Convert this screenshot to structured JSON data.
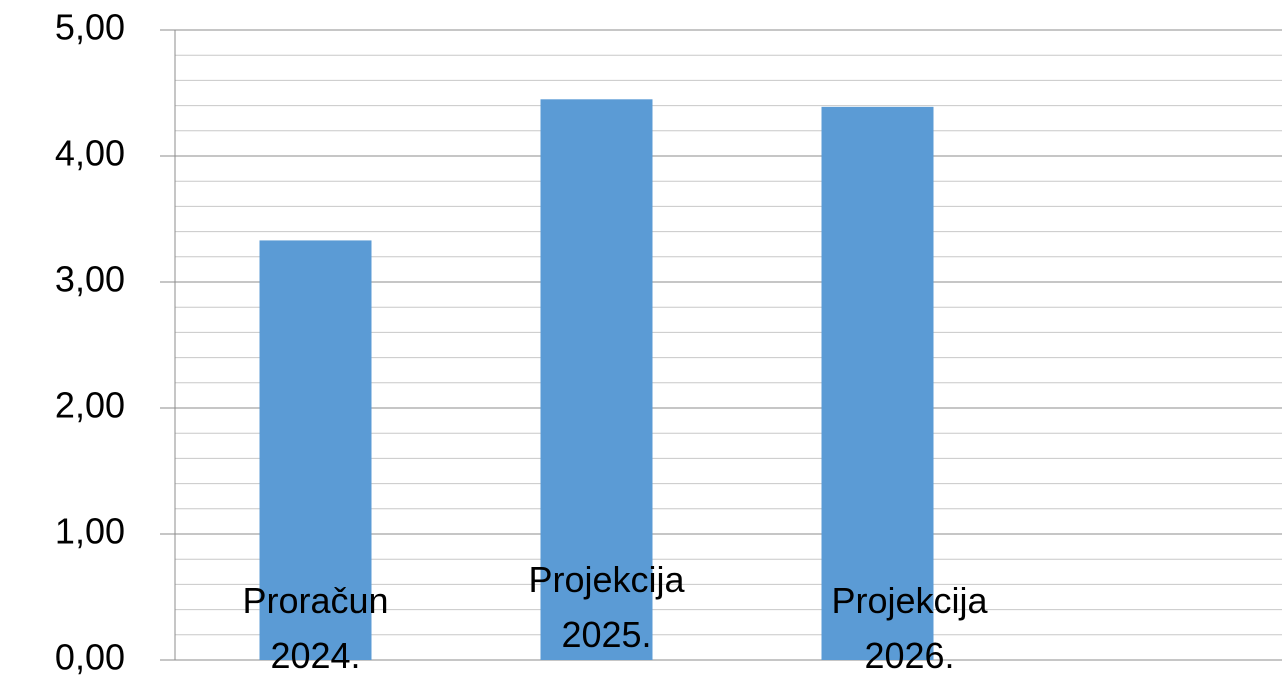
{
  "chart_data": {
    "type": "bar",
    "categories": [
      "Proračun 2024.",
      "Projekcija 2025.",
      "Projekcija 2026."
    ],
    "values": [
      3.33,
      4.45,
      4.39
    ],
    "color": "#5b9bd5",
    "ylim": [
      0,
      5
    ],
    "yticks": [
      {
        "value": 0,
        "label": "0,00"
      },
      {
        "value": 1,
        "label": "1,00"
      },
      {
        "value": 2,
        "label": "2,00"
      },
      {
        "value": 3,
        "label": "3,00"
      },
      {
        "value": 4,
        "label": "4,00"
      },
      {
        "value": 5,
        "label": "5,00"
      }
    ],
    "grid": true
  }
}
